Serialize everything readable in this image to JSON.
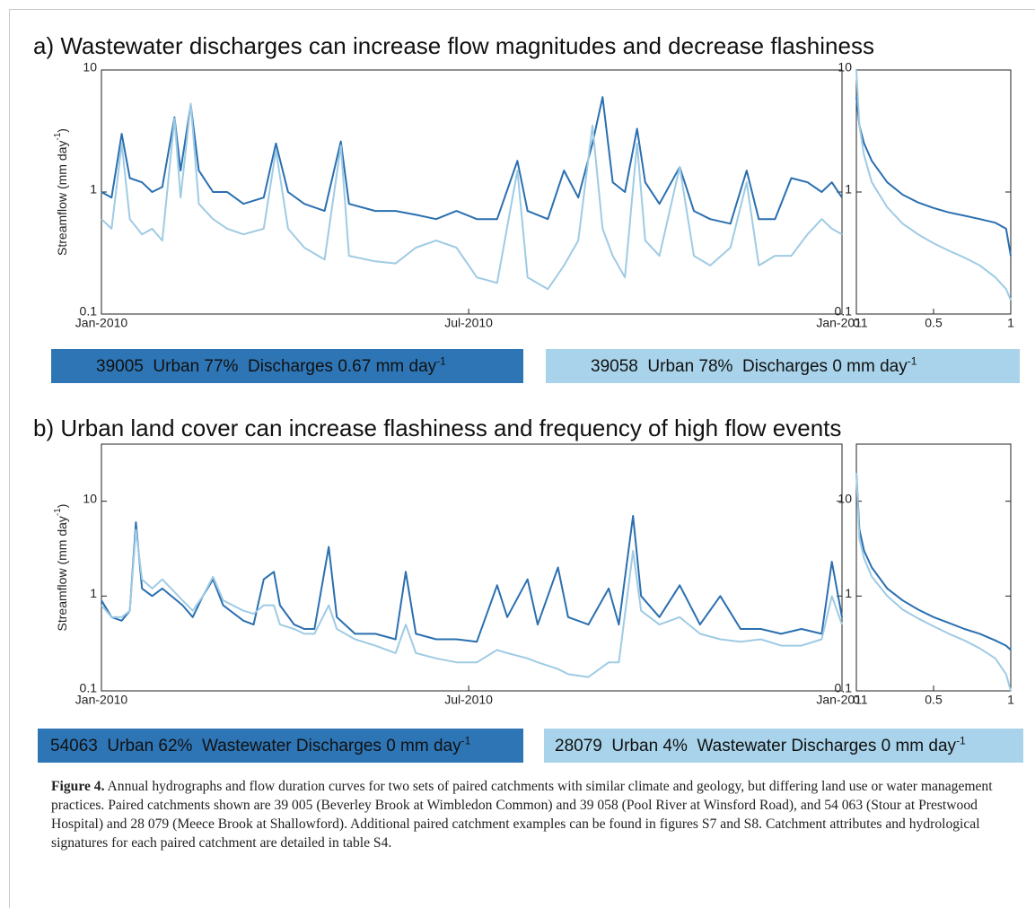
{
  "panels": [
    {
      "title": "a) Wastewater discharges can increase flow magnitudes and decrease flashiness",
      "legend": [
        {
          "text": "39005  Urban 77%  Discharges 0.67 mm day",
          "sup": "-1",
          "color": "#2e75b6"
        },
        {
          "text": "39058  Urban 78%  Discharges 0 mm day",
          "sup": "-1",
          "color": "#a8d3ea"
        }
      ]
    },
    {
      "title": "b) Urban land cover can increase flashiness and frequency of high flow events",
      "legend": [
        {
          "text": "54063  Urban 62%  Wastewater Discharges 0 mm day",
          "sup": "-1",
          "color": "#2e75b6"
        },
        {
          "text": "28079  Urban 4%  Wastewater Discharges 0 mm day",
          "sup": "-1",
          "color": "#a8d3ea"
        }
      ]
    }
  ],
  "chart_data": [
    {
      "type": "line",
      "ylabel": "Streamflow (mm day",
      "ylabel_sup": "-1",
      "ylabel_end": ")",
      "log_y": true,
      "ylim": [
        0.1,
        10
      ],
      "yticks": [
        0.1,
        1,
        10
      ],
      "xlim": [
        0,
        365
      ],
      "xticks": [
        {
          "value": 0,
          "label": "Jan-2010"
        },
        {
          "value": 181,
          "label": "Jul-2010"
        },
        {
          "value": 365,
          "label": "Jan-2011"
        }
      ],
      "x": [
        0,
        5,
        10,
        14,
        20,
        25,
        30,
        36,
        39,
        44,
        48,
        55,
        62,
        70,
        80,
        86,
        92,
        100,
        110,
        118,
        122,
        135,
        145,
        155,
        165,
        175,
        185,
        195,
        205,
        210,
        220,
        228,
        235,
        242,
        247,
        252,
        258,
        264,
        268,
        275,
        285,
        292,
        300,
        310,
        318,
        324,
        332,
        340,
        348,
        355,
        360,
        365
      ],
      "series": [
        {
          "color": "#2a6fb0",
          "values": [
            1.0,
            0.9,
            3.0,
            1.3,
            1.2,
            1.0,
            1.1,
            4.1,
            1.5,
            5.2,
            1.5,
            1.0,
            1.0,
            0.8,
            0.9,
            2.5,
            1.0,
            0.8,
            0.7,
            2.6,
            0.8,
            0.7,
            0.7,
            0.65,
            0.6,
            0.7,
            0.6,
            0.6,
            1.8,
            0.7,
            0.6,
            1.5,
            0.9,
            2.5,
            6.0,
            1.2,
            1.0,
            3.3,
            1.2,
            0.8,
            1.6,
            0.7,
            0.6,
            0.55,
            1.5,
            0.6,
            0.6,
            1.3,
            1.2,
            1.0,
            1.2,
            0.9
          ]
        },
        {
          "color": "#9fcbe4",
          "values": [
            0.6,
            0.5,
            2.5,
            0.6,
            0.45,
            0.5,
            0.4,
            4.0,
            0.9,
            5.3,
            0.8,
            0.6,
            0.5,
            0.45,
            0.5,
            2.2,
            0.5,
            0.35,
            0.28,
            2.4,
            0.3,
            0.27,
            0.26,
            0.35,
            0.4,
            0.35,
            0.2,
            0.18,
            1.5,
            0.2,
            0.16,
            0.25,
            0.4,
            3.5,
            0.5,
            0.3,
            0.2,
            2.5,
            0.4,
            0.3,
            1.6,
            0.3,
            0.25,
            0.35,
            1.2,
            0.25,
            0.3,
            0.3,
            0.45,
            0.6,
            0.5,
            0.45
          ]
        }
      ]
    },
    {
      "type": "line",
      "log_y": true,
      "ylim": [
        0.1,
        10
      ],
      "yticks": [
        0.1,
        1,
        10
      ],
      "xlim": [
        0,
        1
      ],
      "xticks": [
        0,
        0.5,
        1
      ],
      "x": [
        0,
        0.02,
        0.05,
        0.1,
        0.2,
        0.3,
        0.4,
        0.5,
        0.6,
        0.7,
        0.8,
        0.9,
        0.97,
        1
      ],
      "series": [
        {
          "color": "#2a6fb0",
          "values": [
            6,
            3.5,
            2.5,
            1.8,
            1.2,
            0.95,
            0.82,
            0.74,
            0.68,
            0.64,
            0.6,
            0.56,
            0.5,
            0.3
          ]
        },
        {
          "color": "#9fcbe4",
          "values": [
            10,
            3.5,
            2,
            1.2,
            0.75,
            0.55,
            0.45,
            0.38,
            0.33,
            0.29,
            0.25,
            0.2,
            0.16,
            0.13
          ]
        }
      ]
    },
    {
      "type": "line",
      "ylabel": "Streamflow (mm day",
      "ylabel_sup": "-1",
      "ylabel_end": ")",
      "log_y": true,
      "ylim": [
        0.1,
        40
      ],
      "yticks": [
        0.1,
        1,
        10
      ],
      "xlim": [
        0,
        365
      ],
      "xticks": [
        {
          "value": 0,
          "label": "Jan-2010"
        },
        {
          "value": 181,
          "label": "Jul-2010"
        },
        {
          "value": 365,
          "label": "Jan-2011"
        }
      ],
      "x": [
        0,
        5,
        10,
        14,
        17,
        20,
        25,
        30,
        40,
        45,
        50,
        55,
        60,
        70,
        75,
        80,
        85,
        88,
        95,
        100,
        105,
        112,
        116,
        125,
        135,
        145,
        150,
        155,
        165,
        175,
        185,
        195,
        200,
        210,
        215,
        225,
        230,
        240,
        250,
        255,
        262,
        266,
        275,
        285,
        295,
        305,
        315,
        325,
        335,
        345,
        355,
        360,
        365
      ],
      "series": [
        {
          "color": "#2a6fb0",
          "values": [
            0.9,
            0.6,
            0.55,
            0.7,
            6.0,
            1.2,
            1.0,
            1.2,
            0.8,
            0.6,
            1.0,
            1.5,
            0.8,
            0.55,
            0.5,
            1.5,
            1.8,
            0.8,
            0.5,
            0.45,
            0.45,
            3.3,
            0.6,
            0.4,
            0.4,
            0.35,
            1.8,
            0.4,
            0.35,
            0.35,
            0.33,
            1.3,
            0.6,
            1.5,
            0.5,
            2.0,
            0.6,
            0.5,
            1.2,
            0.5,
            7.0,
            1.0,
            0.6,
            1.3,
            0.5,
            1.0,
            0.45,
            0.45,
            0.4,
            0.45,
            0.4,
            2.3,
            0.6
          ]
        },
        {
          "color": "#9fcbe4",
          "values": [
            0.8,
            0.6,
            0.6,
            0.7,
            5.0,
            1.5,
            1.2,
            1.5,
            0.9,
            0.7,
            1.0,
            1.6,
            0.9,
            0.7,
            0.65,
            0.8,
            0.8,
            0.5,
            0.45,
            0.4,
            0.4,
            0.8,
            0.45,
            0.35,
            0.3,
            0.25,
            0.5,
            0.25,
            0.22,
            0.2,
            0.2,
            0.27,
            0.25,
            0.22,
            0.2,
            0.17,
            0.15,
            0.14,
            0.2,
            0.2,
            3.0,
            0.7,
            0.5,
            0.6,
            0.4,
            0.35,
            0.33,
            0.35,
            0.3,
            0.3,
            0.35,
            1.0,
            0.5
          ]
        }
      ]
    },
    {
      "type": "line",
      "log_y": true,
      "ylim": [
        0.1,
        40
      ],
      "yticks": [
        0.1,
        1,
        10
      ],
      "xlim": [
        0,
        1
      ],
      "xticks": [
        0,
        0.5,
        1
      ],
      "x": [
        0,
        0.02,
        0.05,
        0.1,
        0.2,
        0.3,
        0.4,
        0.5,
        0.6,
        0.7,
        0.8,
        0.9,
        0.97,
        1
      ],
      "series": [
        {
          "color": "#2a6fb0",
          "values": [
            20,
            5,
            3,
            2,
            1.2,
            0.9,
            0.72,
            0.6,
            0.52,
            0.45,
            0.4,
            0.34,
            0.3,
            0.27
          ]
        },
        {
          "color": "#9fcbe4",
          "values": [
            20,
            4,
            2.5,
            1.6,
            1.0,
            0.72,
            0.58,
            0.48,
            0.4,
            0.34,
            0.28,
            0.22,
            0.15,
            0.1
          ]
        }
      ]
    }
  ],
  "caption": {
    "label": "Figure 4.",
    "text": " Annual hydrographs and flow duration curves for two sets of paired catchments with similar climate and geology, but differing land use or water management practices. Paired catchments shown are 39 005 (Beverley Brook at Wimbledon Common) and 39 058 (Pool River at Winsford Road), and 54 063 (Stour at Prestwood Hospital) and 28 079 (Meece Brook at Shallowford). Additional paired catchment examples can be found in figures S7 and S8. Catchment attributes and hydrological signatures for each paired catchment are detailed in table S4."
  }
}
